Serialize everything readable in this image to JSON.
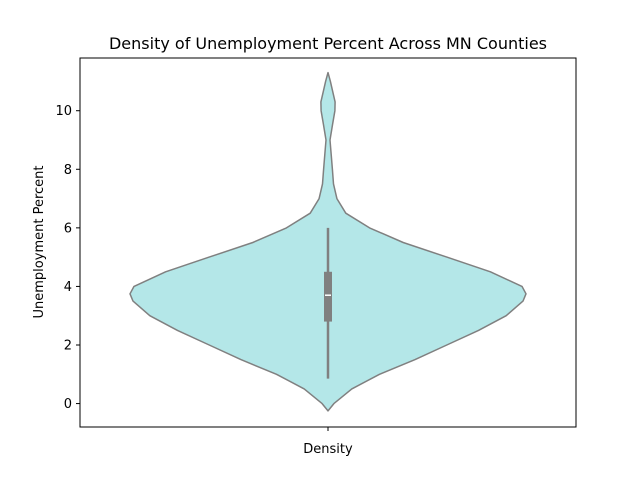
{
  "chart_data": {
    "type": "violin",
    "title": "Density of Unemployment Percent Across MN Counties",
    "xlabel": "",
    "ylabel": "Unemployment Percent",
    "categories": [
      "Density"
    ],
    "ylim": [
      -0.8,
      11.8
    ],
    "yticks": [
      0,
      2,
      4,
      6,
      8,
      10
    ],
    "grid": false,
    "legend": "none",
    "colors": {
      "fill": "#b4e7e8",
      "stroke": "#808080",
      "box": "#808080",
      "median": "#ffffff"
    },
    "density": [
      {
        "y": -0.25,
        "w": 0.0
      },
      {
        "y": 0.0,
        "w": 0.03
      },
      {
        "y": 0.5,
        "w": 0.12
      },
      {
        "y": 1.0,
        "w": 0.26
      },
      {
        "y": 1.5,
        "w": 0.44
      },
      {
        "y": 2.0,
        "w": 0.6
      },
      {
        "y": 2.5,
        "w": 0.76
      },
      {
        "y": 3.0,
        "w": 0.9
      },
      {
        "y": 3.5,
        "w": 0.985
      },
      {
        "y": 3.75,
        "w": 1.0
      },
      {
        "y": 4.0,
        "w": 0.98
      },
      {
        "y": 4.5,
        "w": 0.82
      },
      {
        "y": 5.0,
        "w": 0.6
      },
      {
        "y": 5.5,
        "w": 0.38
      },
      {
        "y": 6.0,
        "w": 0.21
      },
      {
        "y": 6.5,
        "w": 0.09
      },
      {
        "y": 7.0,
        "w": 0.045
      },
      {
        "y": 7.5,
        "w": 0.028
      },
      {
        "y": 8.0,
        "w": 0.022
      },
      {
        "y": 8.5,
        "w": 0.016
      },
      {
        "y": 9.0,
        "w": 0.01
      },
      {
        "y": 9.5,
        "w": 0.022
      },
      {
        "y": 10.0,
        "w": 0.035
      },
      {
        "y": 10.3,
        "w": 0.036
      },
      {
        "y": 10.7,
        "w": 0.022
      },
      {
        "y": 11.0,
        "w": 0.012
      },
      {
        "y": 11.3,
        "w": 0.0
      }
    ],
    "box": {
      "q1": 2.8,
      "median": 3.7,
      "q3": 4.5,
      "whisker_low": 0.85,
      "whisker_high": 6.0
    }
  }
}
